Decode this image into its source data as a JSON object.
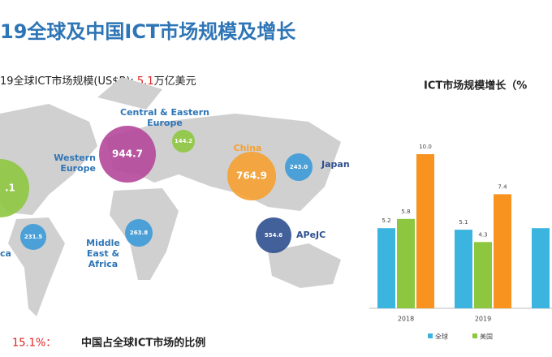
{
  "header": {
    "title": "19全球及中国ICT市场规模及增长"
  },
  "summary": {
    "label": "19全球ICT市场规模(US$B):",
    "value": "5.1",
    "unit": "万亿美元"
  },
  "map": {
    "regions": [
      {
        "lines": [],
        "value": ".1"
      },
      {
        "lines": [
          "Western",
          "Europe"
        ],
        "value": "944.7"
      },
      {
        "lines": [
          "Central & Eastern",
          "Europe"
        ],
        "value": "144.2"
      },
      {
        "lines": [
          "China"
        ],
        "value": "764.9"
      },
      {
        "lines": [
          "Japan"
        ],
        "value": "243.0"
      },
      {
        "lines": [
          "APeJC"
        ],
        "value": "554.6"
      },
      {
        "lines": [
          "Middle",
          "East &",
          "Africa"
        ],
        "value": "263.8"
      },
      {
        "lines": [
          "ca"
        ],
        "value": "231.5"
      }
    ]
  },
  "footer": {
    "share": "15.1%：",
    "text": "中国占全球ICT市场的比例"
  },
  "chart_data": {
    "type": "bar",
    "title": "ICT市场规模增长（%",
    "categories": [
      "2018",
      "2019",
      null
    ],
    "series": [
      {
        "name": "全球",
        "color": "#3cb4e0",
        "values": [
          5.2,
          5.1,
          5.2
        ],
        "value_labels": [
          "5.2",
          "5.1",
          null
        ]
      },
      {
        "name": "美国",
        "color": "#8dc63f",
        "values": [
          5.8,
          4.3,
          null
        ],
        "value_labels": [
          "5.8",
          "4.3",
          null
        ]
      },
      {
        "color": "#f7931e",
        "values": [
          10.0,
          7.4,
          null
        ],
        "value_labels": [
          "10.0",
          "7.4",
          null
        ]
      }
    ]
  }
}
